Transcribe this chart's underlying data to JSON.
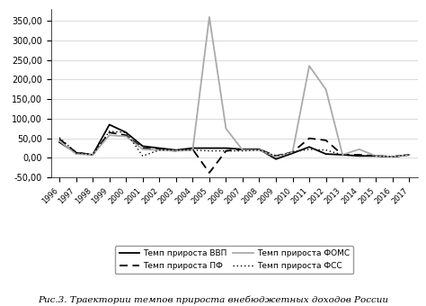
{
  "years": [
    1996,
    1997,
    1998,
    1999,
    2000,
    2001,
    2002,
    2003,
    2004,
    2005,
    2006,
    2007,
    2008,
    2009,
    2010,
    2011,
    2012,
    2013,
    2014,
    2015,
    2016,
    2017
  ],
  "vvp": [
    40,
    13,
    8,
    85,
    65,
    30,
    25,
    20,
    25,
    25,
    25,
    22,
    22,
    -3,
    12,
    28,
    10,
    8,
    5,
    5,
    3,
    8
  ],
  "pf": [
    48,
    14,
    8,
    65,
    58,
    25,
    22,
    18,
    22,
    -38,
    18,
    22,
    22,
    5,
    15,
    50,
    45,
    8,
    8,
    5,
    3,
    8
  ],
  "fomc": [
    43,
    10,
    8,
    58,
    55,
    22,
    20,
    18,
    20,
    360,
    75,
    20,
    20,
    3,
    15,
    235,
    175,
    8,
    22,
    5,
    3,
    8
  ],
  "fss": [
    52,
    13,
    8,
    68,
    65,
    5,
    20,
    20,
    20,
    18,
    18,
    18,
    20,
    5,
    15,
    22,
    20,
    8,
    5,
    5,
    3,
    8
  ],
  "ylim": [
    -50,
    380
  ],
  "yticks": [
    -50,
    0,
    50,
    100,
    150,
    200,
    250,
    300,
    350
  ],
  "title": "Рис.3. Траектории темпов прироста внебюджетных доходов России",
  "legend_vvp": "Темп прироста ВВП",
  "legend_pf": "Темп прироста ПФ",
  "legend_fomc": "Темп прироста ФОМС",
  "legend_fss": "Темп прироста ФСС",
  "color_vvp": "#000000",
  "color_pf": "#000000",
  "color_fomc": "#aaaaaa",
  "color_fss": "#000000",
  "bg_color": "#ffffff"
}
